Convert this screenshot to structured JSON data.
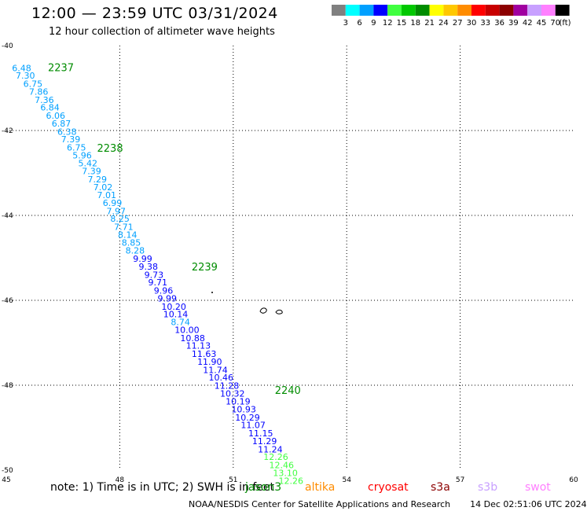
{
  "header": {
    "title": "12:00 — 23:59 UTC 03/31/2024",
    "subtitle": "12 hour collection of altimeter wave heights"
  },
  "legend": {
    "colors": [
      "#808080",
      "#00ffff",
      "#00a0ff",
      "#0000ff",
      "#40ff40",
      "#00c800",
      "#008c00",
      "#ffff00",
      "#ffc800",
      "#ff8c00",
      "#ff0000",
      "#c80000",
      "#8c0000",
      "#a000a0",
      "#c8a0ff",
      "#ff80ff",
      "#000000"
    ],
    "labels": [
      "3",
      "6",
      "9",
      "12",
      "15",
      "18",
      "21",
      "24",
      "27",
      "30",
      "33",
      "36",
      "39",
      "42",
      "45",
      "70"
    ],
    "unit": "(ft)"
  },
  "footer": {
    "note": "note: 1) Time is in UTC; 2) SWH is in feet",
    "satellites": [
      {
        "name": "jason3",
        "color": "#008c00"
      },
      {
        "name": "altika",
        "color": "#ff8c00"
      },
      {
        "name": "cryosat",
        "color": "#ff0000"
      },
      {
        "name": "s3a",
        "color": "#8c0000"
      },
      {
        "name": "s3b",
        "color": "#c8a0ff"
      },
      {
        "name": "swot",
        "color": "#ff80ff"
      }
    ],
    "credit": "NOAA/NESDIS Center for Satellite Applications and Research",
    "timestamp": "14 Dec 02:51:06 UTC 2024"
  },
  "chart_data": {
    "type": "scatter",
    "xlim": [
      45,
      60
    ],
    "ylim": [
      -50,
      -40
    ],
    "x_ticks": [
      45,
      48,
      51,
      54,
      57,
      60
    ],
    "y_ticks": [
      -40,
      -42,
      -44,
      -46,
      -48,
      -50
    ],
    "grid": true,
    "pass_labels": [
      {
        "text": "2237",
        "lon": 46.1,
        "lat": -40.6
      },
      {
        "text": "2238",
        "lon": 47.4,
        "lat": -42.5
      },
      {
        "text": "2239",
        "lon": 49.9,
        "lat": -45.3
      },
      {
        "text": "2240",
        "lon": 52.1,
        "lat": -48.2
      }
    ],
    "points": [
      {
        "lon": 45.15,
        "lat": -40.6,
        "v": "6.48",
        "c": "#00a0ff"
      },
      {
        "lon": 45.25,
        "lat": -40.78,
        "v": "7.30",
        "c": "#00a0ff"
      },
      {
        "lon": 45.45,
        "lat": -40.97,
        "v": "6.75",
        "c": "#00a0ff"
      },
      {
        "lon": 45.6,
        "lat": -41.16,
        "v": "7.86",
        "c": "#00a0ff"
      },
      {
        "lon": 45.75,
        "lat": -41.35,
        "v": "7.36",
        "c": "#00a0ff"
      },
      {
        "lon": 45.9,
        "lat": -41.53,
        "v": "6.84",
        "c": "#00a0ff"
      },
      {
        "lon": 46.05,
        "lat": -41.72,
        "v": "6.06",
        "c": "#00a0ff"
      },
      {
        "lon": 46.2,
        "lat": -41.91,
        "v": "6.87",
        "c": "#00a0ff"
      },
      {
        "lon": 46.35,
        "lat": -42.1,
        "v": "6.38",
        "c": "#00a0ff"
      },
      {
        "lon": 46.45,
        "lat": -42.28,
        "v": "7.39",
        "c": "#00a0ff"
      },
      {
        "lon": 46.6,
        "lat": -42.47,
        "v": "6.75",
        "c": "#00a0ff"
      },
      {
        "lon": 46.75,
        "lat": -42.66,
        "v": "5.96",
        "c": "#00a0ff"
      },
      {
        "lon": 46.9,
        "lat": -42.84,
        "v": "5.42",
        "c": "#00a0ff"
      },
      {
        "lon": 47.0,
        "lat": -43.03,
        "v": "7.39",
        "c": "#00a0ff"
      },
      {
        "lon": 47.15,
        "lat": -43.22,
        "v": "7.29",
        "c": "#00a0ff"
      },
      {
        "lon": 47.3,
        "lat": -43.41,
        "v": "7.02",
        "c": "#00a0ff"
      },
      {
        "lon": 47.4,
        "lat": -43.59,
        "v": "7.01",
        "c": "#00a0ff"
      },
      {
        "lon": 47.55,
        "lat": -43.78,
        "v": "6.99",
        "c": "#00a0ff"
      },
      {
        "lon": 47.65,
        "lat": -43.97,
        "v": "7.97",
        "c": "#00a0ff"
      },
      {
        "lon": 47.75,
        "lat": -44.15,
        "v": "8.25",
        "c": "#00a0ff"
      },
      {
        "lon": 47.85,
        "lat": -44.34,
        "v": "7.71",
        "c": "#00a0ff"
      },
      {
        "lon": 47.95,
        "lat": -44.53,
        "v": "8.14",
        "c": "#00a0ff"
      },
      {
        "lon": 48.05,
        "lat": -44.71,
        "v": "8.85",
        "c": "#00a0ff"
      },
      {
        "lon": 48.15,
        "lat": -44.9,
        "v": "8.28",
        "c": "#00a0ff"
      },
      {
        "lon": 48.35,
        "lat": -45.09,
        "v": "9.99",
        "c": "#0000ff"
      },
      {
        "lon": 48.5,
        "lat": -45.28,
        "v": "9.38",
        "c": "#0000ff"
      },
      {
        "lon": 48.65,
        "lat": -45.47,
        "v": "9.73",
        "c": "#0000ff"
      },
      {
        "lon": 48.75,
        "lat": -45.65,
        "v": "9.71",
        "c": "#0000ff"
      },
      {
        "lon": 48.9,
        "lat": -45.84,
        "v": "9.96",
        "c": "#0000ff"
      },
      {
        "lon": 49.0,
        "lat": -46.03,
        "v": "9.99",
        "c": "#0000ff"
      },
      {
        "lon": 49.1,
        "lat": -46.22,
        "v": "10.20",
        "c": "#0000ff"
      },
      {
        "lon": 49.15,
        "lat": -46.4,
        "v": "10.14",
        "c": "#0000ff"
      },
      {
        "lon": 49.35,
        "lat": -46.58,
        "v": "8.74",
        "c": "#00a0ff"
      },
      {
        "lon": 49.45,
        "lat": -46.77,
        "v": "10.00",
        "c": "#0000ff"
      },
      {
        "lon": 49.6,
        "lat": -46.96,
        "v": "10.88",
        "c": "#0000ff"
      },
      {
        "lon": 49.75,
        "lat": -47.14,
        "v": "11.13",
        "c": "#0000ff"
      },
      {
        "lon": 49.9,
        "lat": -47.33,
        "v": "11.63",
        "c": "#0000ff"
      },
      {
        "lon": 50.05,
        "lat": -47.52,
        "v": "11.90",
        "c": "#0000ff"
      },
      {
        "lon": 50.2,
        "lat": -47.71,
        "v": "11.74",
        "c": "#0000ff"
      },
      {
        "lon": 50.35,
        "lat": -47.89,
        "v": "10.46",
        "c": "#0000ff"
      },
      {
        "lon": 50.5,
        "lat": -48.08,
        "v": "11.28",
        "c": "#0000ff"
      },
      {
        "lon": 50.65,
        "lat": -48.27,
        "v": "10.32",
        "c": "#0000ff"
      },
      {
        "lon": 50.8,
        "lat": -48.45,
        "v": "10.19",
        "c": "#0000ff"
      },
      {
        "lon": 50.95,
        "lat": -48.64,
        "v": "10.93",
        "c": "#0000ff"
      },
      {
        "lon": 51.05,
        "lat": -48.83,
        "v": "10.29",
        "c": "#0000ff"
      },
      {
        "lon": 51.2,
        "lat": -49.01,
        "v": "11.07",
        "c": "#0000ff"
      },
      {
        "lon": 51.4,
        "lat": -49.2,
        "v": "11.15",
        "c": "#0000ff"
      },
      {
        "lon": 51.5,
        "lat": -49.39,
        "v": "11.29",
        "c": "#0000ff"
      },
      {
        "lon": 51.65,
        "lat": -49.58,
        "v": "11.24",
        "c": "#0000ff"
      },
      {
        "lon": 51.8,
        "lat": -49.76,
        "v": "12.26",
        "c": "#40ff40"
      },
      {
        "lon": 51.95,
        "lat": -49.95,
        "v": "12.46",
        "c": "#40ff40"
      },
      {
        "lon": 52.05,
        "lat": -50.14,
        "v": "13.10",
        "c": "#40ff40"
      },
      {
        "lon": 52.2,
        "lat": -50.32,
        "v": "12.26",
        "c": "#40ff40"
      }
    ]
  }
}
